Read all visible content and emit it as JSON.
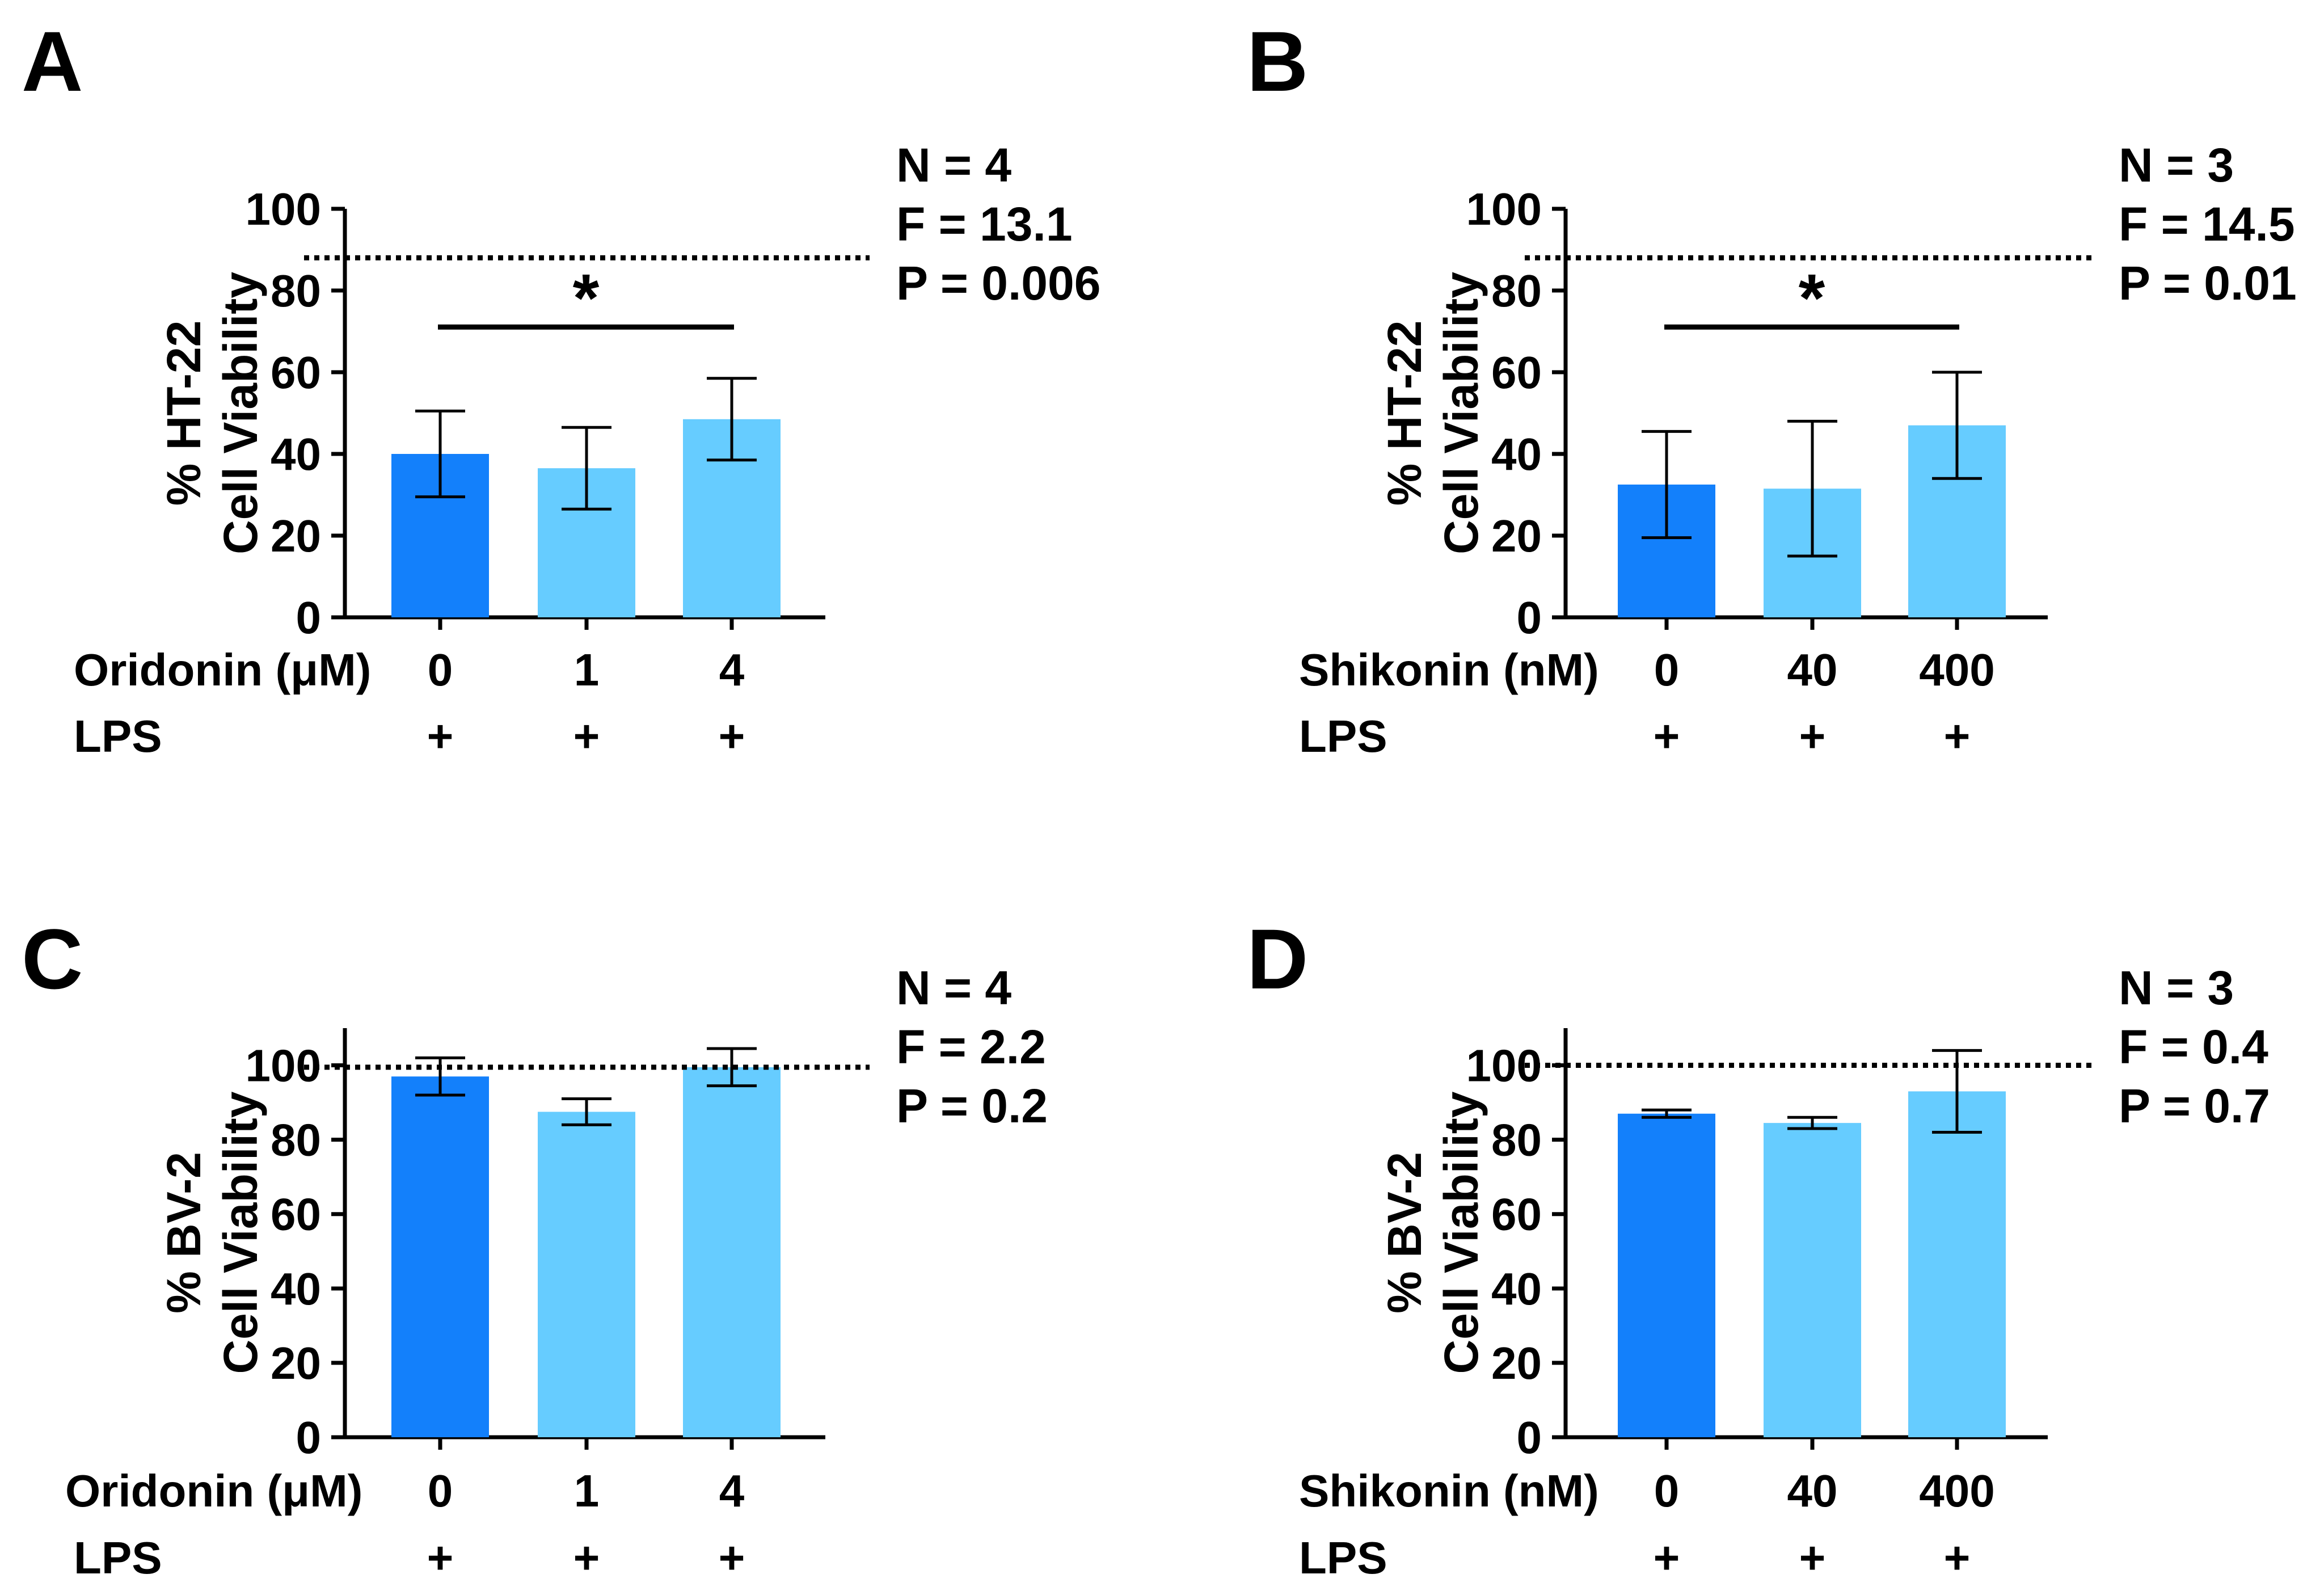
{
  "colors": {
    "dark_bar": "#1380FB",
    "light_bar": "#66CCFF",
    "ink": "#000000"
  },
  "chart_data": [
    {
      "type": "bar",
      "panel": "A",
      "ylabel": [
        "% HT-22",
        "Cell Viability"
      ],
      "xlabel": "Oridonin (μM)",
      "row2_label": "LPS",
      "categories": [
        "0",
        "1",
        "4"
      ],
      "lps": [
        "+",
        "+",
        "+"
      ],
      "values": [
        40,
        36.5,
        48.5
      ],
      "errors": [
        10.5,
        10,
        10
      ],
      "ylim": [
        0,
        100
      ],
      "yticks": [
        "0",
        "20",
        "40",
        "60",
        "80",
        "100"
      ],
      "reference_line": 88,
      "significance": {
        "from": 0,
        "to": 2,
        "label": "*"
      },
      "stats": [
        "N = 4",
        "F = 13.1",
        "P = 0.006"
      ]
    },
    {
      "type": "bar",
      "panel": "B",
      "ylabel": [
        "% HT-22",
        "Cell Viability"
      ],
      "xlabel": "Shikonin (nM)",
      "row2_label": "LPS",
      "categories": [
        "0",
        "40",
        "400"
      ],
      "lps": [
        "+",
        "+",
        "+"
      ],
      "values": [
        32.5,
        31.5,
        47
      ],
      "errors": [
        13,
        16.5,
        13
      ],
      "ylim": [
        0,
        100
      ],
      "yticks": [
        "0",
        "20",
        "40",
        "60",
        "80",
        "100"
      ],
      "reference_line": 88,
      "significance": {
        "from": 0,
        "to": 2,
        "label": "*"
      },
      "stats": [
        "N = 3",
        "F = 14.5",
        "P = 0.01"
      ]
    },
    {
      "type": "bar",
      "panel": "C",
      "ylabel": [
        "% BV-2",
        "Cell Viability"
      ],
      "xlabel": "Oridonin (μM)",
      "row2_label": "LPS",
      "categories": [
        "0",
        "1",
        "4"
      ],
      "lps": [
        "+",
        "+",
        "+"
      ],
      "values": [
        97,
        87.5,
        99.5
      ],
      "errors": [
        5,
        3.5,
        5
      ],
      "ylim": [
        0,
        110
      ],
      "yticks": [
        "0",
        "20",
        "40",
        "60",
        "80",
        "100"
      ],
      "reference_line": 99.5,
      "significance": null,
      "stats": [
        "N = 4",
        "F = 2.2",
        "P = 0.2"
      ]
    },
    {
      "type": "bar",
      "panel": "D",
      "ylabel": [
        "% BV-2",
        "Cell Viability"
      ],
      "xlabel": "Shikonin (nM)",
      "row2_label": "LPS",
      "categories": [
        "0",
        "40",
        "400"
      ],
      "lps": [
        "+",
        "+",
        "+"
      ],
      "values": [
        87,
        84.5,
        93
      ],
      "errors": [
        1,
        1.5,
        11
      ],
      "ylim": [
        0,
        110
      ],
      "yticks": [
        "0",
        "20",
        "40",
        "60",
        "80",
        "100"
      ],
      "reference_line": 100,
      "significance": null,
      "stats": [
        "N = 3",
        "F = 0.4",
        "P = 0.7"
      ]
    }
  ]
}
